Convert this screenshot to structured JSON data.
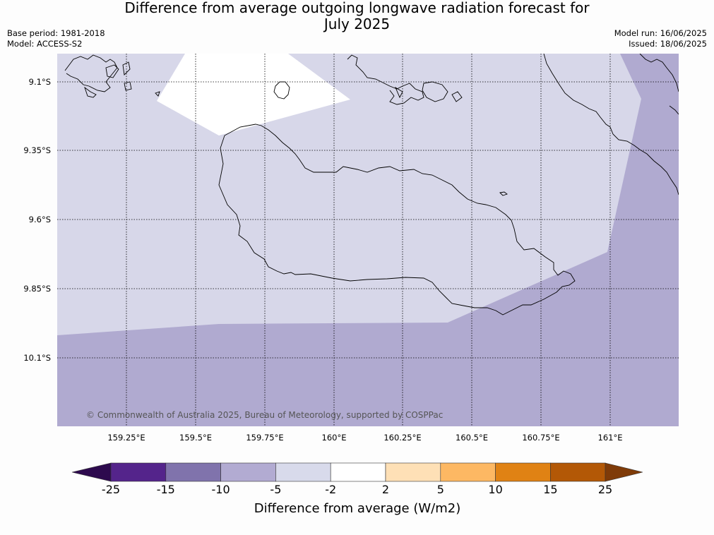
{
  "header": {
    "title_line1": "Difference from average outgoing longwave radiation forecast for",
    "title_line2": "July 2025",
    "base_period": "Base period: 1981-2018",
    "model": "Model: ACCESS-S2",
    "model_run": "Model run: 16/06/2025",
    "issued": "Issued: 18/06/2025"
  },
  "map": {
    "copyright": "© Commonwealth of Australia 2025, Bureau of Meteorology, supported by COSPPac",
    "lat_labels": [
      "9.1°S",
      "9.35°S",
      "9.6°S",
      "9.85°S",
      "10.1°S"
    ],
    "lon_labels": [
      "159.25°E",
      "159.5°E",
      "159.75°E",
      "160°E",
      "160.25°E",
      "160.5°E",
      "160.75°E",
      "161°E"
    ],
    "fill_colors": {
      "light_purple": "#d7d7e9",
      "mid_purple": "#b0aad0",
      "white": "#ffffff"
    }
  },
  "colorbar": {
    "title": "Difference from average (W/m2)",
    "ticks": [
      "-25",
      "-15",
      "-10",
      "-5",
      "-2",
      "2",
      "5",
      "10",
      "15",
      "25"
    ],
    "colors": [
      "#2d0a4e",
      "#54248b",
      "#8073ac",
      "#b2abd2",
      "#d8daeb",
      "#ffffff",
      "#fee0b6",
      "#fdb863",
      "#e08214",
      "#b35806",
      "#7f3b08"
    ]
  }
}
